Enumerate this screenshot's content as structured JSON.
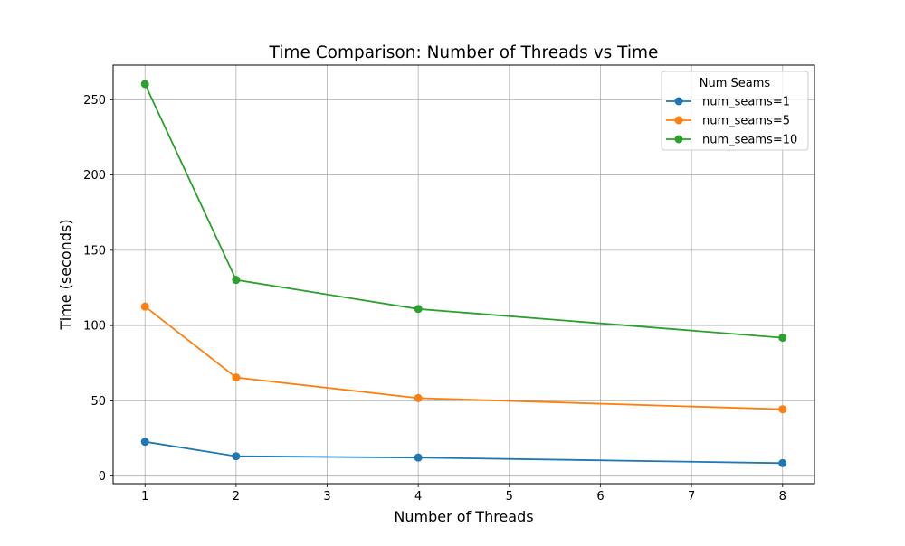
{
  "chart_data": {
    "type": "line",
    "title": "Time Comparison: Number of Threads vs Time",
    "xlabel": "Number of Threads",
    "ylabel": "Time (seconds)",
    "x": [
      1,
      2,
      4,
      8
    ],
    "xlim": [
      0.65,
      8.35
    ],
    "ylim": [
      -5,
      273
    ],
    "xticks": [
      1,
      2,
      3,
      4,
      5,
      6,
      7,
      8
    ],
    "yticks": [
      0,
      50,
      100,
      150,
      200,
      250
    ],
    "grid": true,
    "legend": {
      "title": "Num Seams",
      "placement": "top-right"
    },
    "series": [
      {
        "name": "num_seams=1",
        "color": "#1f77b4",
        "values": [
          22.8,
          13.2,
          12.3,
          8.6
        ]
      },
      {
        "name": "num_seams=5",
        "color": "#ff7f0e",
        "values": [
          112.6,
          65.5,
          51.8,
          44.4
        ]
      },
      {
        "name": "num_seams=10",
        "color": "#2ca02c",
        "values": [
          260.4,
          130.3,
          111.0,
          91.9
        ]
      }
    ]
  }
}
